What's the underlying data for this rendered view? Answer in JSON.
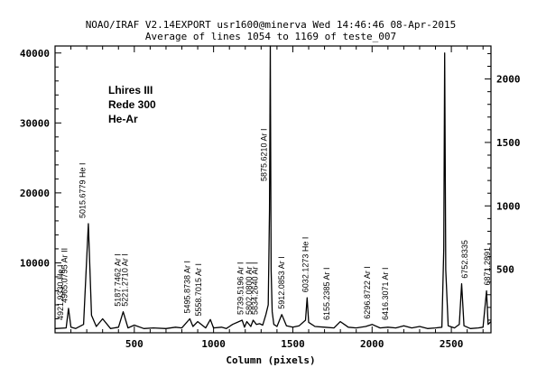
{
  "chart_data": {
    "type": "line",
    "header": "NOAO/IRAF V2.14EXPORT usr1600@minerva Wed 14:46:46 08-Apr-2015",
    "title": "Average of lines 1054 to 1169 of teste_007",
    "xlabel": "Column (pixels)",
    "xlim": [
      0,
      2750
    ],
    "ylim": [
      0,
      41000
    ],
    "ylim_right": [
      0,
      2260
    ],
    "x_ticks": [
      500,
      1000,
      1500,
      2000,
      2500
    ],
    "y_ticks": [
      10000,
      20000,
      30000,
      40000
    ],
    "y_ticks_right": [
      500,
      1000,
      1500,
      2000
    ],
    "grid": false,
    "annotation_block": [
      "Lhires III",
      "Rede 300",
      "He-Ar"
    ],
    "baseline": 400,
    "series": [
      {
        "values_x": [
          0,
          70,
          85,
          100,
          130,
          180,
          210,
          230,
          260,
          300,
          350,
          400,
          430,
          460,
          500,
          560,
          620,
          700,
          760,
          800,
          850,
          870,
          900,
          950,
          980,
          1000,
          1050,
          1080,
          1120,
          1180,
          1195,
          1210,
          1235,
          1250,
          1270,
          1290,
          1310,
          1330,
          1345,
          1353,
          1358,
          1363,
          1370,
          1380,
          1400,
          1430,
          1460,
          1500,
          1540,
          1580,
          1590,
          1600,
          1640,
          1700,
          1760,
          1800,
          1850,
          1900,
          1960,
          2000,
          2050,
          2100,
          2150,
          2200,
          2250,
          2300,
          2350,
          2400,
          2440,
          2452,
          2458,
          2465,
          2480,
          2520,
          2550,
          2565,
          2580,
          2620,
          2670,
          2700,
          2722,
          2732,
          2750
        ],
        "values_y": [
          600,
          700,
          3500,
          800,
          600,
          1200,
          15600,
          2500,
          900,
          2000,
          600,
          800,
          3000,
          700,
          1100,
          600,
          700,
          600,
          800,
          700,
          2000,
          900,
          1600,
          700,
          1900,
          700,
          800,
          600,
          1200,
          1800,
          800,
          1600,
          900,
          1800,
          1200,
          1300,
          1100,
          2600,
          4000,
          17500,
          41000,
          9000,
          3000,
          1200,
          900,
          2600,
          1000,
          800,
          1000,
          1800,
          5000,
          1500,
          900,
          800,
          700,
          1600,
          800,
          700,
          900,
          1200,
          700,
          800,
          700,
          1000,
          700,
          900,
          600,
          700,
          800,
          12000,
          40000,
          9000,
          1000,
          700,
          1200,
          7000,
          1000,
          600,
          700,
          800,
          6000,
          1200,
          1600
        ]
      }
    ],
    "line_labels": [
      {
        "x": 35,
        "text": "4921.9330 He I"
      },
      {
        "x": 60,
        "text": "4965.0795 Ar II"
      },
      {
        "x": 175,
        "text": "5015.6779 He I"
      },
      {
        "x": 395,
        "text": "5187.7462 Ar I"
      },
      {
        "x": 440,
        "text": "5221.2710 Ar I"
      },
      {
        "x": 835,
        "text": "5495.8738 Ar I"
      },
      {
        "x": 905,
        "text": "5558.7015 Ar I"
      },
      {
        "x": 1170,
        "text": "5739.5196 Ar I"
      },
      {
        "x": 1225,
        "text": "5802.0800 Ar I"
      },
      {
        "x": 1262,
        "text": "5834.2640 Ar I"
      },
      {
        "x": 1318,
        "text": "5875.6210 Ar I"
      },
      {
        "x": 1430,
        "text": "5912.0853 Ar I"
      },
      {
        "x": 1580,
        "text": "6032.1273 He I"
      },
      {
        "x": 1715,
        "text": "6155.2385 Ar I"
      },
      {
        "x": 1970,
        "text": "6296.8722 Ar I"
      },
      {
        "x": 2085,
        "text": "6416.3071 Ar I"
      },
      {
        "x": 2585,
        "text": "6752.8335"
      },
      {
        "x": 2728,
        "text": "6871.2891"
      }
    ]
  }
}
